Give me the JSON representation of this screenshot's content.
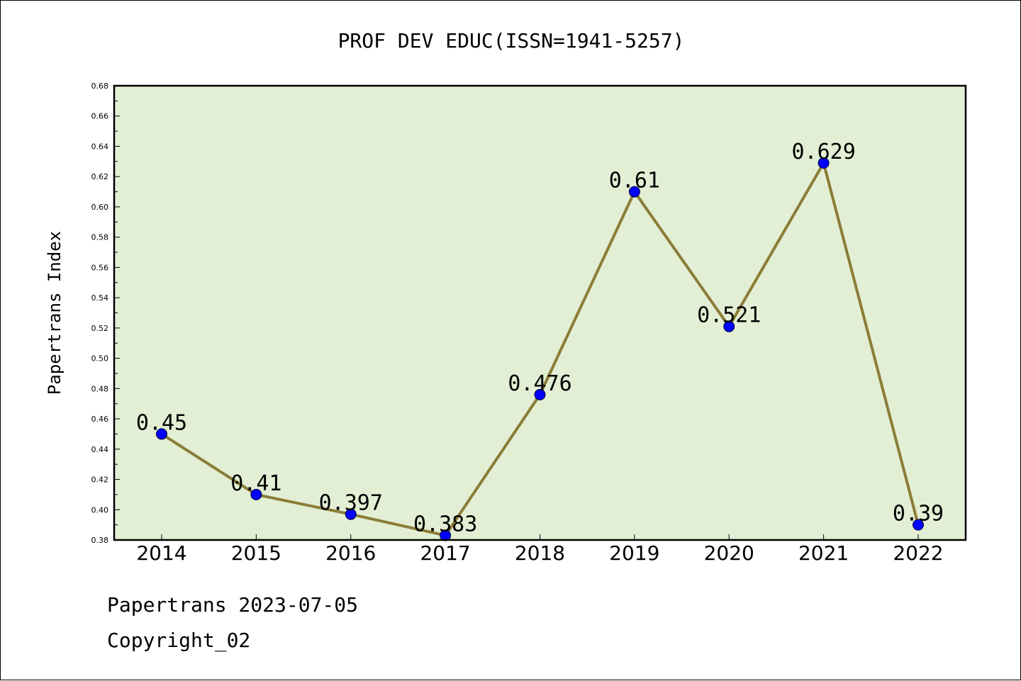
{
  "chart_data": {
    "type": "line",
    "title": "PROF DEV EDUC(ISSN=1941-5257)",
    "xlabel": "",
    "ylabel": "Papertrans Index",
    "categories": [
      "2014",
      "2015",
      "2016",
      "2017",
      "2018",
      "2019",
      "2020",
      "2021",
      "2022"
    ],
    "values": [
      0.45,
      0.41,
      0.397,
      0.383,
      0.476,
      0.61,
      0.521,
      0.629,
      0.39
    ],
    "data_labels": [
      "0.45",
      "0.41",
      "0.397",
      "0.383",
      "0.476",
      "0.61",
      "0.521",
      "0.629",
      "0.39"
    ],
    "ylim": [
      0.38,
      0.68
    ],
    "yticks": [
      "0.38",
      "0.40",
      "0.42",
      "0.44",
      "0.46",
      "0.48",
      "0.50",
      "0.52",
      "0.54",
      "0.56",
      "0.58",
      "0.60",
      "0.62",
      "0.64",
      "0.66",
      "0.68"
    ],
    "grid": false,
    "legend": "none",
    "colors": {
      "plot_background": "#e2efd5",
      "line": "#8b7d37",
      "marker": "#0000ff",
      "axes": "#000000"
    }
  },
  "footer": {
    "line1": "Papertrans 2023-07-05",
    "line2": "Copyright_02"
  }
}
